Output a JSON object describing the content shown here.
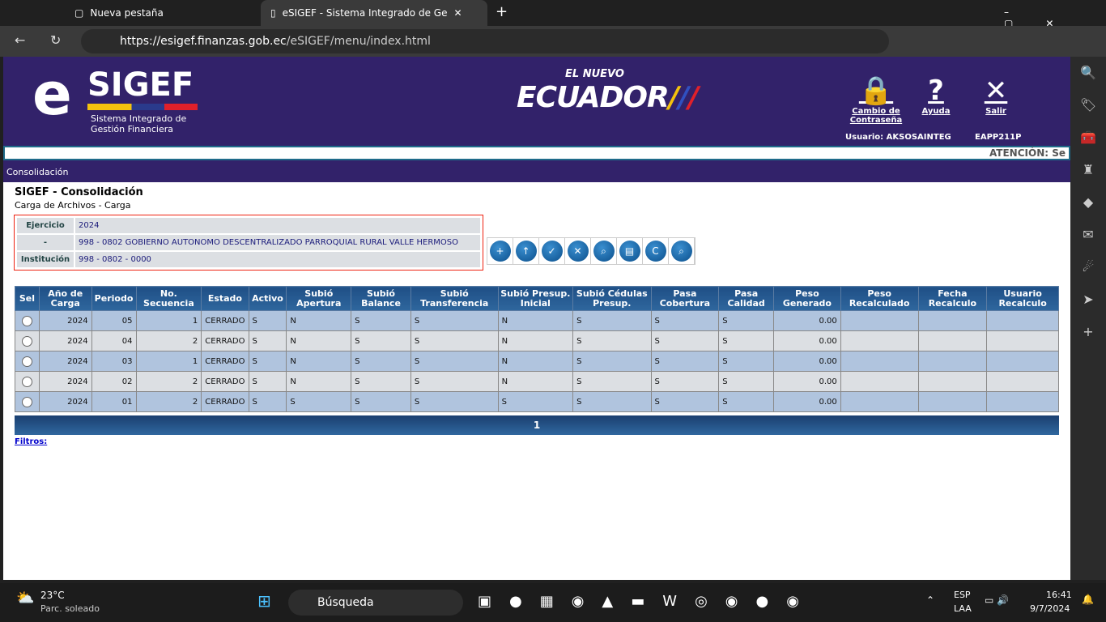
{
  "browser": {
    "tabs": [
      "Nueva pestaña",
      "eSIGEF - Sistema Integrado de Ge"
    ],
    "url_host": "https://esigef.finanzas.gob.ec",
    "url_path": "/eSIGEF/menu/index.html"
  },
  "header": {
    "logo_e": "e",
    "logo_sigef": "SIGEF",
    "logo_subtitle": "Sistema Integrado de Gestión Financiera",
    "ecuador_small": "EL NUEVO",
    "ecuador": "ECUADOR",
    "links": [
      "Cambio de Contraseña",
      "Ayuda",
      "Salir"
    ],
    "user": "Usuario: AKSOSAINTEG",
    "server": "EAPP211P",
    "ticker": "ATENCIÓN: Se"
  },
  "menu": "Consolidación",
  "page": {
    "title": "SIGEF - Consolidación",
    "subtitle": "Carga de Archivos - Carga"
  },
  "info": [
    [
      "Ejercicio",
      "2024"
    ],
    [
      "-",
      "998 - 0802 GOBIERNO AUTONOMO DESCENTRALIZADO PARROQUIAL RURAL VALLE HERMOSO"
    ],
    [
      "Institución",
      "998 - 0802 - 0000"
    ]
  ],
  "tools": [
    "new-file-icon",
    "upload-icon",
    "validate-icon",
    "delete-icon",
    "preview-icon",
    "print-icon",
    "check-icon",
    "search-icon"
  ],
  "table": {
    "headers": [
      "Sel",
      "Año de Carga",
      "Periodo",
      "No. Secuencia",
      "Estado",
      "Activo",
      "Subió Apertura",
      "Subió Balance",
      "Subió Transferencia",
      "Subió Presup. Inicial",
      "Subió Cédulas Presup.",
      "Pasa Cobertura",
      "Pasa Calidad",
      "Peso Generado",
      "Peso Recalculado",
      "Fecha Recalculo",
      "Usuario Recalculo"
    ],
    "rows": [
      [
        "2024",
        "05",
        "1",
        "CERRADO",
        "S",
        "N",
        "S",
        "S",
        "N",
        "S",
        "S",
        "S",
        "0.00",
        "",
        "",
        ""
      ],
      [
        "2024",
        "04",
        "2",
        "CERRADO",
        "S",
        "N",
        "S",
        "S",
        "N",
        "S",
        "S",
        "S",
        "0.00",
        "",
        "",
        ""
      ],
      [
        "2024",
        "03",
        "1",
        "CERRADO",
        "S",
        "N",
        "S",
        "S",
        "N",
        "S",
        "S",
        "S",
        "0.00",
        "",
        "",
        ""
      ],
      [
        "2024",
        "02",
        "2",
        "CERRADO",
        "S",
        "N",
        "S",
        "S",
        "N",
        "S",
        "S",
        "S",
        "0.00",
        "",
        "",
        ""
      ],
      [
        "2024",
        "01",
        "2",
        "CERRADO",
        "S",
        "S",
        "S",
        "S",
        "S",
        "S",
        "S",
        "S",
        "0.00",
        "",
        "",
        ""
      ]
    ],
    "page": "1"
  },
  "filtros": "Filtros:",
  "taskbar": {
    "temp": "23°C",
    "weather": "Parc. soleado",
    "search": "Búsqueda",
    "lang1": "ESP",
    "lang2": "LAA",
    "time": "16:41",
    "date": "9/7/2024"
  }
}
